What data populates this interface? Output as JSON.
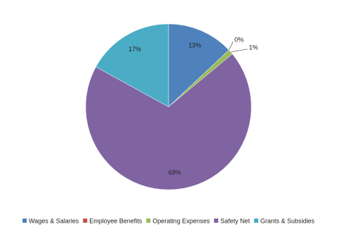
{
  "chart_data": {
    "type": "pie",
    "categories": [
      "Wages & Salaries",
      "Employee Benefits",
      "Operating Expenses",
      "Safety Net",
      "Grants & Subsidies"
    ],
    "values": [
      13,
      0,
      1,
      69,
      17
    ],
    "value_labels": [
      "13%",
      "0%",
      "1%",
      "69%",
      "17%"
    ],
    "colors": [
      "#4f81bd",
      "#c0504d",
      "#9bbb59",
      "#8064a2",
      "#4bacc6"
    ],
    "legend": "bottom"
  }
}
